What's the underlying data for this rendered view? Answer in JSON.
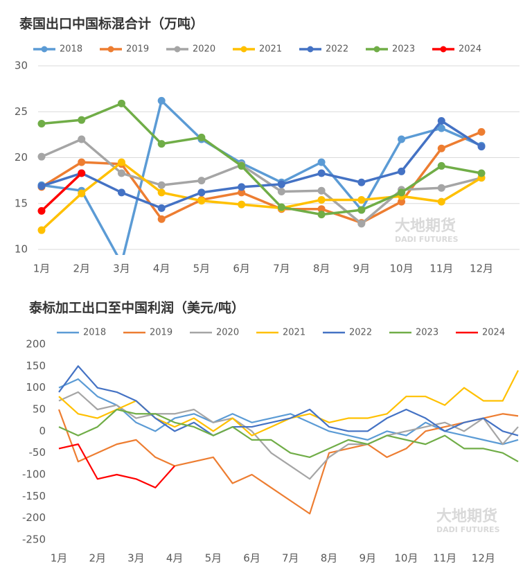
{
  "chart_data": [
    {
      "type": "line",
      "title": "泰国出口中国标混合计（万吨）",
      "watermark": "大地期货",
      "watermark_sub": "DADI FUTURES",
      "categories": [
        "1月",
        "2月",
        "3月",
        "4月",
        "5月",
        "6月",
        "7月",
        "8月",
        "9月",
        "10月",
        "11月",
        "12月"
      ],
      "ylim": [
        10,
        30
      ],
      "yticks": [
        10,
        15,
        20,
        25,
        30
      ],
      "grid": true,
      "series": [
        {
          "name": "2018",
          "color": "#5b9bd5",
          "values": [
            17,
            16.4,
            8.5,
            26.2,
            22,
            19.4,
            17.3,
            19.5,
            14.3,
            22,
            23.2,
            21.3
          ]
        },
        {
          "name": "2019",
          "color": "#ed7d31",
          "values": [
            16.8,
            19.5,
            19.3,
            13.3,
            15.4,
            16.2,
            14.4,
            14.4,
            12.9,
            15.2,
            21,
            22.8
          ]
        },
        {
          "name": "2020",
          "color": "#a5a5a5",
          "values": [
            20.1,
            22,
            18.3,
            17,
            17.5,
            19.2,
            16.3,
            16.4,
            12.8,
            16.5,
            16.7,
            17.8
          ]
        },
        {
          "name": "2021",
          "color": "#ffc000",
          "values": [
            12.1,
            16.1,
            19.5,
            16.2,
            15.3,
            14.9,
            14.5,
            15.4,
            15.4,
            15.8,
            15.2,
            17.8
          ]
        },
        {
          "name": "2022",
          "color": "#4472c4",
          "values": [
            16.9,
            18.3,
            16.2,
            14.5,
            16.2,
            16.8,
            17.1,
            18.3,
            17.3,
            18.5,
            24,
            21.2
          ]
        },
        {
          "name": "2023",
          "color": "#70ad47",
          "values": [
            23.7,
            24.1,
            25.9,
            21.5,
            22.2,
            19.1,
            14.6,
            13.8,
            14.3,
            16.2,
            19.1,
            18.3
          ]
        },
        {
          "name": "2024",
          "color": "#ff0000",
          "values": [
            14.2,
            18.3,
            null,
            null,
            null,
            null,
            null,
            null,
            null,
            null,
            null,
            null
          ]
        }
      ]
    },
    {
      "type": "line",
      "title": "泰标加工出口至中国利润（美元/吨）",
      "watermark": "大地期货",
      "watermark_sub": "DADI FUTURES",
      "x": [
        1,
        1.5,
        2,
        2.5,
        3,
        3.5,
        4,
        4.5,
        5,
        5.5,
        6,
        6.5,
        7,
        7.5,
        8,
        8.5,
        9,
        9.5,
        10,
        10.5,
        11,
        11.5,
        12,
        12.5,
        12.9
      ],
      "xlim": [
        1,
        12.9
      ],
      "xticks": [
        {
          "value": 1,
          "label": "1月"
        },
        {
          "value": 2,
          "label": "2月"
        },
        {
          "value": 3,
          "label": "3月"
        },
        {
          "value": 4,
          "label": "4月"
        },
        {
          "value": 5,
          "label": "5月"
        },
        {
          "value": 6,
          "label": "6月"
        },
        {
          "value": 7,
          "label": "7月"
        },
        {
          "value": 8,
          "label": "8月"
        },
        {
          "value": 9,
          "label": "9月"
        },
        {
          "value": 10,
          "label": "10月"
        },
        {
          "value": 11,
          "label": "11月"
        },
        {
          "value": 12,
          "label": "12月"
        }
      ],
      "ylim": [
        -250,
        200
      ],
      "yticks": [
        -250,
        -200,
        -150,
        -100,
        -50,
        0,
        50,
        100,
        150,
        200
      ],
      "grid": false,
      "series": [
        {
          "name": "2018",
          "color": "#5b9bd5",
          "values": [
            100,
            120,
            80,
            60,
            20,
            0,
            30,
            40,
            20,
            40,
            20,
            30,
            40,
            20,
            0,
            -10,
            -20,
            0,
            -10,
            20,
            0,
            -10,
            -20,
            -30,
            -20
          ]
        },
        {
          "name": "2019",
          "color": "#ed7d31",
          "values": [
            50,
            -70,
            -50,
            -30,
            -20,
            -60,
            -80,
            -70,
            -60,
            -120,
            -100,
            -130,
            -160,
            -190,
            -50,
            -40,
            -30,
            -60,
            -40,
            0,
            10,
            20,
            30,
            40,
            35
          ]
        },
        {
          "name": "2020",
          "color": "#a5a5a5",
          "values": [
            70,
            90,
            50,
            60,
            30,
            40,
            40,
            50,
            20,
            30,
            0,
            -50,
            -80,
            -110,
            -60,
            -30,
            -30,
            -10,
            0,
            10,
            20,
            0,
            30,
            -30,
            10
          ]
        },
        {
          "name": "2021",
          "color": "#ffc000",
          "values": [
            80,
            40,
            30,
            50,
            70,
            30,
            10,
            30,
            0,
            30,
            -10,
            10,
            30,
            40,
            20,
            30,
            30,
            40,
            80,
            80,
            60,
            100,
            70,
            70,
            140
          ]
        },
        {
          "name": "2022",
          "color": "#4472c4",
          "values": [
            90,
            150,
            100,
            90,
            70,
            30,
            0,
            20,
            -10,
            10,
            10,
            20,
            30,
            50,
            10,
            0,
            0,
            30,
            50,
            30,
            0,
            20,
            30,
            0,
            -10
          ]
        },
        {
          "name": "2023",
          "color": "#70ad47",
          "values": [
            10,
            -10,
            10,
            50,
            40,
            40,
            20,
            10,
            -10,
            10,
            -20,
            -20,
            -50,
            -60,
            -40,
            -20,
            -30,
            -10,
            -20,
            -30,
            -10,
            -40,
            -40,
            -50,
            -70
          ]
        },
        {
          "name": "2024",
          "color": "#ff0000",
          "values": [
            -40,
            -30,
            -110,
            -100,
            -110,
            -130,
            -80,
            null,
            null,
            null,
            null,
            null,
            null,
            null,
            null,
            null,
            null,
            null,
            null,
            null,
            null,
            null,
            null,
            null,
            null
          ]
        }
      ]
    }
  ]
}
